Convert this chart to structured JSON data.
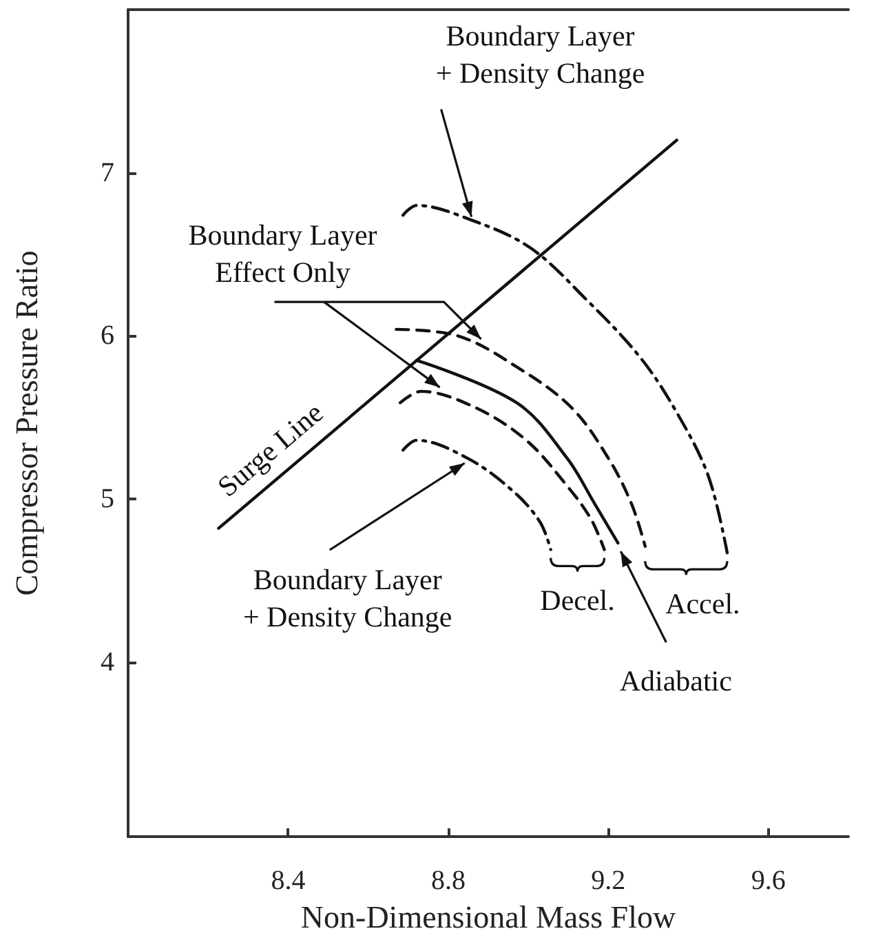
{
  "chart_data": {
    "type": "line",
    "xlabel": "Non-Dimensional Mass Flow",
    "ylabel": "Compressor Pressure Ratio",
    "xlim": [
      8.0,
      9.8
    ],
    "ylim": [
      2.93,
      8.0
    ],
    "xticks": [
      8.4,
      8.8,
      9.2,
      9.6
    ],
    "yticks": [
      4,
      5,
      6,
      7
    ],
    "grid": false,
    "marker": "none",
    "series": [
      {
        "name": "Surge Line",
        "color": "#111111",
        "line_style": "solid",
        "x": [
          8.226,
          9.371
        ],
        "values": [
          4.82,
          7.2
        ]
      },
      {
        "name": "Adiabatic",
        "color": "#111111",
        "line_style": "solid",
        "x": [
          8.721,
          8.971,
          9.097,
          9.166,
          9.224
        ],
        "values": [
          5.85,
          5.59,
          5.25,
          4.97,
          4.73
        ]
      },
      {
        "color": "#111111",
        "line_style": "dashed",
        "x": [
          8.67,
          8.824,
          8.971,
          9.108,
          9.2,
          9.258,
          9.292
        ],
        "values": [
          6.04,
          6.0,
          5.81,
          5.56,
          5.25,
          4.97,
          4.71
        ]
      },
      {
        "color": "#111111",
        "line_style": "dashed",
        "x": [
          8.68,
          8.732,
          8.868,
          8.995,
          9.097,
          9.156,
          9.19
        ],
        "values": [
          5.59,
          5.66,
          5.56,
          5.36,
          5.08,
          4.88,
          4.69
        ]
      },
      {
        "color": "#111111",
        "line_style": "dashdot",
        "x": [
          8.687,
          8.721,
          8.848,
          8.961,
          9.029,
          9.056
        ],
        "values": [
          5.3,
          5.36,
          5.25,
          5.05,
          4.86,
          4.69
        ]
      },
      {
        "color": "#111111",
        "line_style": "dashdot",
        "x": [
          8.687,
          8.721,
          8.858,
          9.005,
          9.142,
          9.279,
          9.371,
          9.45,
          9.497
        ],
        "values": [
          6.74,
          6.8,
          6.71,
          6.54,
          6.23,
          5.87,
          5.53,
          5.14,
          4.67
        ]
      }
    ],
    "annotations": [
      {
        "text": "Boundary Layer\n+ Density Change",
        "x": 8.858,
        "y": 6.73
      },
      {
        "text": "Boundary Layer\nEffect Only",
        "x": 8.882,
        "y": 5.98
      },
      {
        "text": "Boundary Layer\n+ Density Change",
        "x": 8.841,
        "y": 5.22
      },
      "Decel.",
      "Accel."
    ]
  }
}
